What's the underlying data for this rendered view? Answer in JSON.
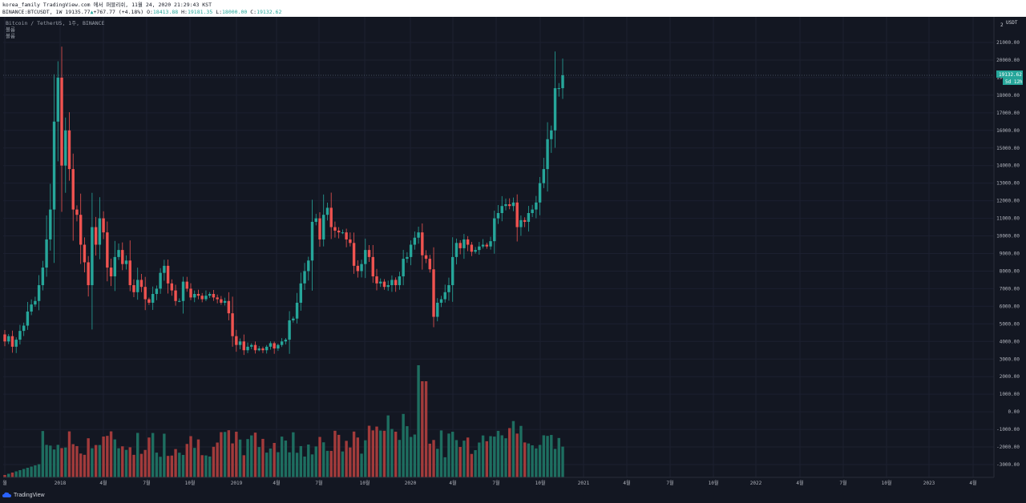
{
  "header": {
    "line1": "korea_family TradingView.com 에서 퍼블리쉬, 11월 24, 2020 21:29:43 KST",
    "symbol": "BINANCE:BTCUSDT, 1W",
    "last": "19135.77",
    "change": "+767.77 (+4.18%)",
    "o_label": "O:",
    "o_value": "18413.88",
    "h_label": "H:",
    "h_value": "19181.35",
    "l_label": "L:",
    "l_value": "18000.00",
    "c_label": "C:",
    "c_value": "19132.62"
  },
  "legend": {
    "title": "Bitcoin / TetherUS, 1주, BINANCE",
    "line2": "볼륨",
    "line3": "볼륨"
  },
  "price_axis": {
    "currency": "USDT",
    "corner": "2",
    "ticks": [
      "21000.00",
      "20000.00",
      "19000.00",
      "18000.00",
      "17000.00",
      "16000.00",
      "15000.00",
      "14000.00",
      "13000.00",
      "12000.00",
      "11000.00",
      "10000.00",
      "9000.00",
      "8000.00",
      "7000.00",
      "6000.00",
      "5000.00",
      "4000.00",
      "3000.00",
      "2000.00",
      "1000.00",
      "0.00",
      "-1000.00",
      "-2000.00",
      "-3000.00"
    ],
    "last_price_label": "19132.62",
    "countdown_label": "5d 12h"
  },
  "time_axis": {
    "ticks": [
      "월",
      "2018",
      "4월",
      "7월",
      "10월",
      "2019",
      "4월",
      "7월",
      "10월",
      "2020",
      "4월",
      "7월",
      "10월",
      "2021",
      "4월",
      "7월",
      "10월",
      "2022",
      "4월",
      "7월",
      "10월",
      "2023",
      "4월"
    ]
  },
  "branding": {
    "name": "TradingView"
  },
  "colors": {
    "background": "#131722",
    "up": "#26a69a",
    "down": "#ef5350",
    "up_volume": "#1e6e60",
    "down_volume": "#a23b3b",
    "text": "#c9ced6"
  },
  "chart_data": {
    "type": "candlestick",
    "xlabel": "",
    "ylabel": "",
    "price_range": [
      -3700,
      21800
    ],
    "keypoints": [
      {
        "date": "2017-08",
        "open": 4200,
        "high": 4800,
        "low": 2900,
        "close": 4000
      },
      {
        "date": "2017-12",
        "open": 16000,
        "high": 19800,
        "low": 11000,
        "close": 13800
      },
      {
        "date": "2018-02",
        "open": 10000,
        "high": 11800,
        "low": 6000,
        "close": 9000
      },
      {
        "date": "2018-06",
        "open": 7200,
        "high": 7800,
        "low": 5800,
        "close": 6400
      },
      {
        "date": "2018-12",
        "open": 3900,
        "high": 4200,
        "low": 3150,
        "close": 3500
      },
      {
        "date": "2019-06",
        "open": 10600,
        "high": 13900,
        "low": 9000,
        "close": 11500
      },
      {
        "date": "2019-12",
        "open": 7200,
        "high": 7800,
        "low": 6500,
        "close": 7300
      },
      {
        "date": "2020-02",
        "open": 9500,
        "high": 10500,
        "low": 8500,
        "close": 9700
      },
      {
        "date": "2020-03",
        "open": 7800,
        "high": 8100,
        "low": 3800,
        "close": 5400
      },
      {
        "date": "2020-08",
        "open": 11400,
        "high": 12400,
        "low": 10600,
        "close": 11700
      },
      {
        "date": "2020-11",
        "open": 18413.88,
        "high": 19181.35,
        "low": 18000.0,
        "close": 19132.62
      }
    ]
  }
}
